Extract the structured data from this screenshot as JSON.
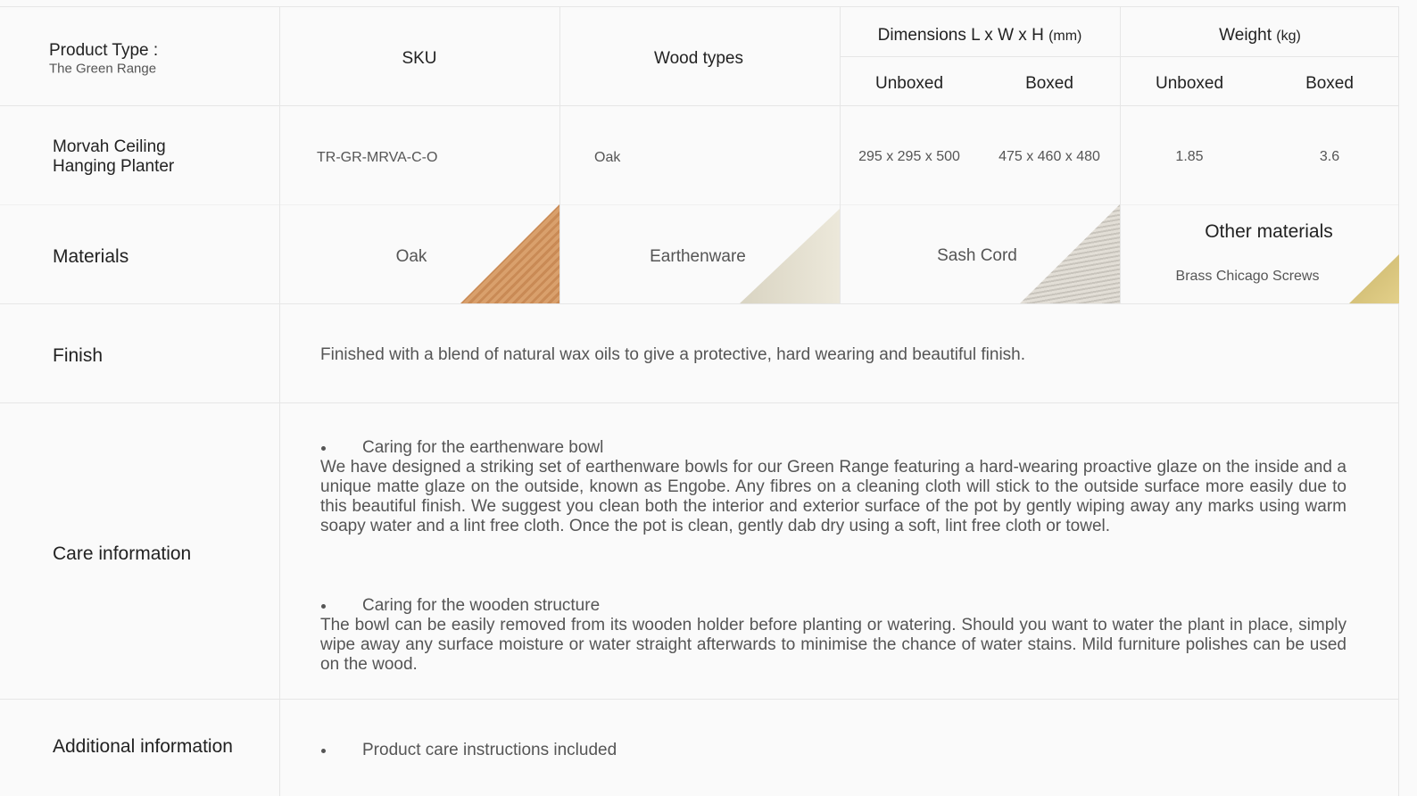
{
  "header": {
    "product_type_label": "Product Type :",
    "product_type_value": "The Green Range",
    "sku": "SKU",
    "wood_types": "Wood types",
    "dimensions": "Dimensions L x W x H",
    "dimensions_unit": "(mm)",
    "weight": "Weight",
    "weight_unit": "(kg)",
    "subheaders": [
      "Unboxed",
      "Boxed",
      "Unboxed",
      "Boxed"
    ]
  },
  "product": {
    "name": "Morvah Ceiling Hanging Planter",
    "sku": "TR-GR-MRVA-C-O",
    "wood": "Oak",
    "dimensions_unboxed": "295 x 295 x 500",
    "dimensions_boxed": "475 x 460 x 480",
    "weight_unboxed": "1.85",
    "weight_boxed": "3.6"
  },
  "materials": {
    "label": "Materials",
    "items": [
      "Oak",
      "Earthenware",
      "Sash Cord"
    ],
    "other_title": "Other materials",
    "other_text": "Brass Chicago Screws"
  },
  "finish": {
    "label": "Finish",
    "text": "Finished with a blend of natural wax oils to give a protective, hard wearing and beautiful finish."
  },
  "care": {
    "label": "Care information",
    "sections": [
      {
        "heading": "Caring for the earthenware bowl",
        "text": "We have designed a striking set of earthenware bowls for our Green Range featuring a hard-wearing proactive glaze on the inside and a unique matte glaze on the outside, known as Engobe. Any fibres on a cleaning cloth will stick to the outside surface more easily due to this beautiful finish. We suggest you clean both the interior and exterior surface of the pot by gently wiping away any marks using warm soapy water and a lint free cloth. Once the pot is clean, gently dab dry using a  soft, lint free cloth or towel."
      },
      {
        "heading": "Caring for the wooden structure",
        "text": "The bowl can be easily removed from its wooden holder before planting or watering. Should you want to water the plant in place, simply wipe away any surface moisture or water straight afterwards to minimise the chance of water stains. Mild furniture polishes can be used on the wood."
      }
    ]
  },
  "additional": {
    "label": "Additional information",
    "items": [
      "Product care instructions included"
    ]
  }
}
